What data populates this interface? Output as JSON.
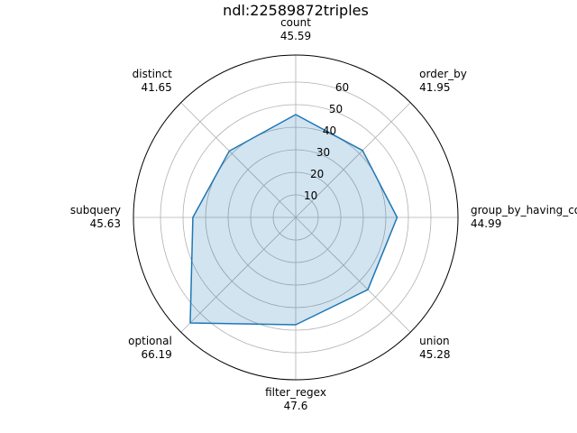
{
  "chart_data": {
    "type": "radar",
    "title": "ndl:22589872triples",
    "categories": [
      "count",
      "order_by",
      "group_by_having_count_distinct",
      "union",
      "filter_regex",
      "optional",
      "subquery",
      "distinct"
    ],
    "values": [
      45.59,
      41.95,
      44.99,
      45.28,
      47.6,
      66.19,
      45.63,
      41.65
    ],
    "value_labels": [
      "45.59",
      "41.95",
      "44.99",
      "45.28",
      "47.6",
      "66.19",
      "45.63",
      "41.65"
    ],
    "radial_ticks": [
      10,
      20,
      30,
      40,
      50,
      60
    ],
    "rlim": [
      0,
      72
    ],
    "grid": true,
    "series_color": "#1f77b4",
    "fill_color": "#1f77b4"
  }
}
